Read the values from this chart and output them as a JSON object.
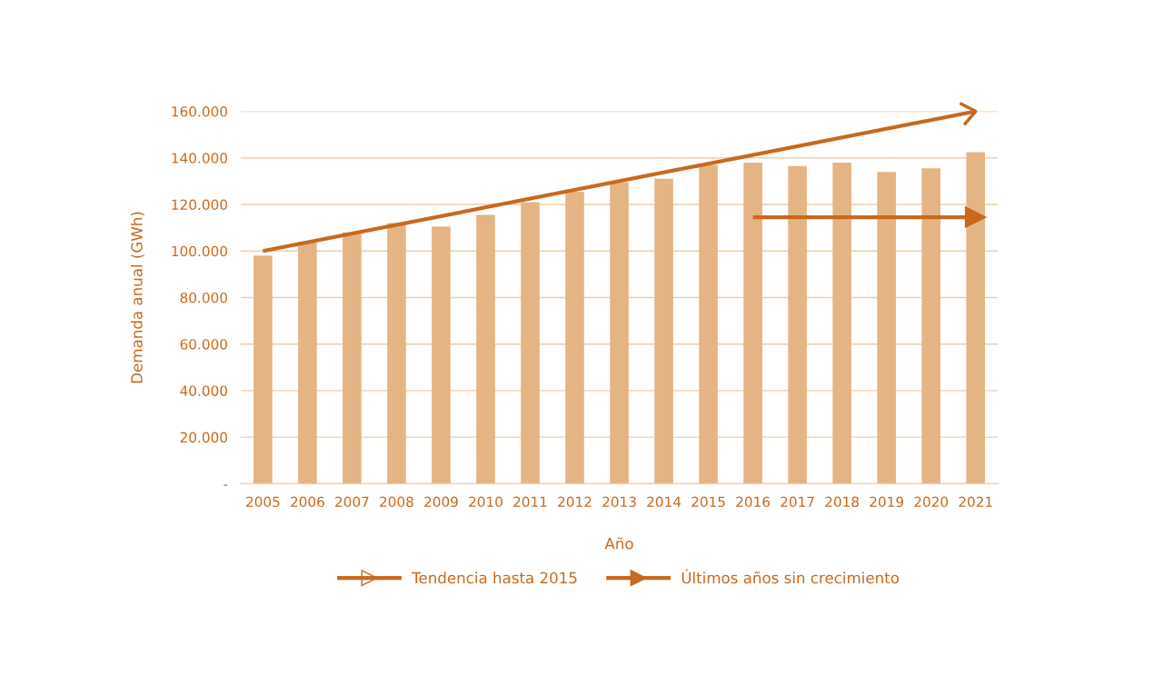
{
  "chart_data": {
    "type": "bar",
    "xlabel": "Año",
    "ylabel": "Demanda anual (GWh)",
    "categories": [
      "2005",
      "2006",
      "2007",
      "2008",
      "2009",
      "2010",
      "2011",
      "2012",
      "2013",
      "2014",
      "2015",
      "2016",
      "2017",
      "2018",
      "2019",
      "2020",
      "2021"
    ],
    "series": [
      {
        "color": "#e4b484",
        "values": [
          98000,
          104000,
          108000,
          112000,
          110500,
          115500,
          121000,
          125500,
          129500,
          131000,
          137000,
          138000,
          136500,
          138000,
          134000,
          135500,
          142500
        ]
      },
      {
        "type": "line",
        "name": "Tendencia hasta 2015",
        "color": "#c8691c",
        "marker": "none",
        "values": [
          100000,
          null,
          null,
          null,
          null,
          null,
          null,
          null,
          null,
          null,
          null,
          null,
          null,
          null,
          null,
          null,
          160000
        ]
      },
      {
        "type": "line",
        "name": "Últimos años sin crecimiento",
        "color": "#c8691c",
        "marker": "triangle",
        "values": [
          null,
          null,
          null,
          null,
          null,
          null,
          null,
          null,
          null,
          null,
          null,
          114500,
          null,
          null,
          null,
          null,
          114500
        ]
      }
    ],
    "ylim": [
      0,
      160000
    ],
    "yticks": [
      {
        "value": 0,
        "label": "-"
      },
      {
        "value": 20000,
        "label": "20.000"
      },
      {
        "value": 40000,
        "label": "40.000"
      },
      {
        "value": 60000,
        "label": "60.000"
      },
      {
        "value": 80000,
        "label": "80.000"
      },
      {
        "value": 100000,
        "label": "100.000"
      },
      {
        "value": 120000,
        "label": "120.000"
      },
      {
        "value": 140000,
        "label": "140.000"
      },
      {
        "value": 160000,
        "label": "160.000"
      }
    ],
    "grid": "y",
    "legend": "bottom"
  }
}
